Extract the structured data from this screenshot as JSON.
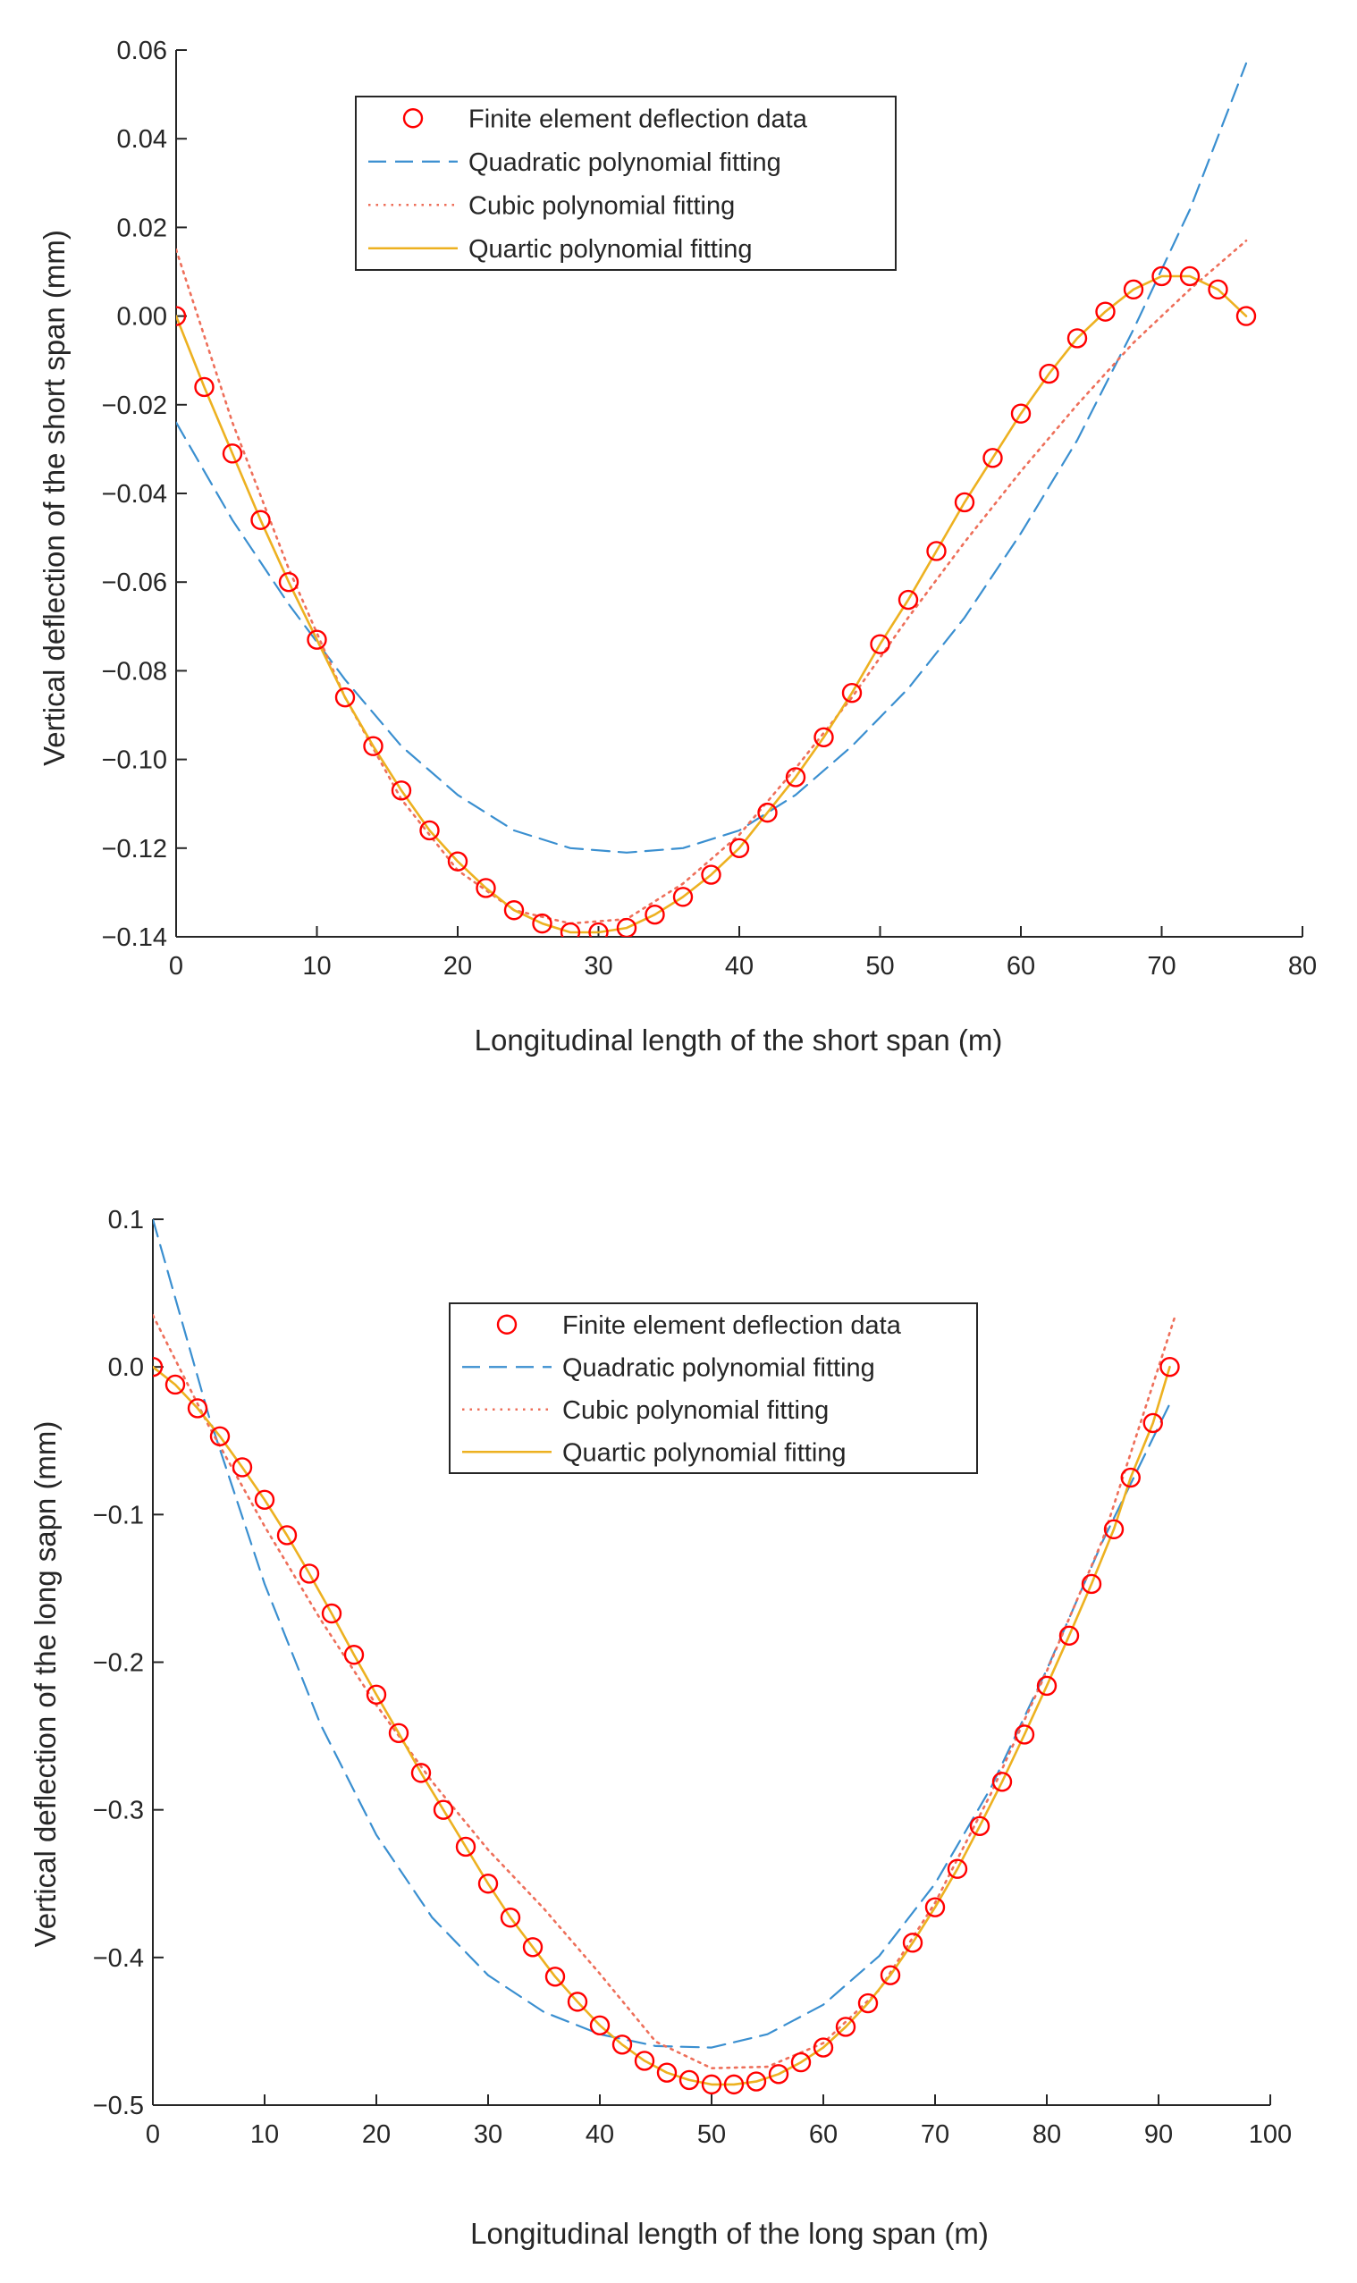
{
  "chart_data": [
    {
      "type": "line",
      "title": "",
      "xlabel": "Longitudinal length of the short span (m)",
      "ylabel": "Vertical deflection of the short span (mm)",
      "xlim": [
        0,
        80
      ],
      "ylim": [
        -0.14,
        0.06
      ],
      "xticks": [
        0,
        10,
        20,
        30,
        40,
        50,
        60,
        70,
        80
      ],
      "xtick_labels": [
        "0",
        "10",
        "20",
        "30",
        "40",
        "50",
        "60",
        "70",
        "80"
      ],
      "yticks": [
        -0.14,
        -0.12,
        -0.1,
        -0.08,
        -0.06,
        -0.04,
        -0.02,
        0.0,
        0.02,
        0.04,
        0.06
      ],
      "ytick_labels": [
        "−0.14",
        "−0.12",
        "−0.10",
        "−0.08",
        "−0.06",
        "−0.04",
        "−0.02",
        "0.00",
        "0.02",
        "0.04",
        "0.06"
      ],
      "grid": false,
      "legend_position": "top-center",
      "series": [
        {
          "name": "Finite element deflection data",
          "style": "markers-circle",
          "color": "#ff0000",
          "x": [
            0,
            2,
            4,
            6,
            8,
            10,
            12,
            14,
            16,
            18,
            20,
            22,
            24,
            26,
            28,
            30,
            32,
            34,
            36,
            38,
            40,
            42,
            44,
            46,
            48,
            50,
            52,
            54,
            56,
            58,
            60,
            62,
            64,
            66,
            68,
            70,
            72,
            74,
            76
          ],
          "values": [
            0.0,
            -0.016,
            -0.031,
            -0.046,
            -0.06,
            -0.073,
            -0.086,
            -0.097,
            -0.107,
            -0.116,
            -0.123,
            -0.129,
            -0.134,
            -0.137,
            -0.139,
            -0.139,
            -0.138,
            -0.135,
            -0.131,
            -0.126,
            -0.12,
            -0.112,
            -0.104,
            -0.095,
            -0.085,
            -0.074,
            -0.064,
            -0.053,
            -0.042,
            -0.032,
            -0.022,
            -0.013,
            -0.005,
            0.001,
            0.006,
            0.009,
            0.009,
            0.006,
            0.0
          ]
        },
        {
          "name": "Quadratic polynomial fitting",
          "style": "dashed",
          "color": "#3a8fd0",
          "x": [
            0,
            4,
            8,
            12,
            16,
            20,
            24,
            28,
            32,
            36,
            40,
            44,
            48,
            52,
            56,
            60,
            64,
            68,
            72,
            76
          ],
          "values": [
            -0.024,
            -0.046,
            -0.065,
            -0.082,
            -0.097,
            -0.108,
            -0.116,
            -0.12,
            -0.121,
            -0.12,
            -0.116,
            -0.108,
            -0.097,
            -0.084,
            -0.068,
            -0.049,
            -0.028,
            -0.003,
            0.024,
            0.057
          ]
        },
        {
          "name": "Cubic polynomial fitting",
          "style": "dotted",
          "color": "#ee6f5a",
          "x": [
            0,
            4,
            8,
            12,
            16,
            20,
            24,
            28,
            32,
            36,
            40,
            44,
            48,
            52,
            56,
            60,
            64,
            68,
            72,
            76
          ],
          "values": [
            0.015,
            -0.024,
            -0.057,
            -0.086,
            -0.109,
            -0.125,
            -0.134,
            -0.137,
            -0.136,
            -0.128,
            -0.117,
            -0.102,
            -0.086,
            -0.068,
            -0.051,
            -0.035,
            -0.02,
            -0.006,
            0.006,
            0.017
          ]
        },
        {
          "name": "Quartic polynomial fitting",
          "style": "solid",
          "color": "#edb120",
          "x": [
            0,
            2,
            4,
            6,
            8,
            10,
            12,
            14,
            16,
            18,
            20,
            22,
            24,
            26,
            28,
            30,
            32,
            34,
            36,
            38,
            40,
            42,
            44,
            46,
            48,
            50,
            52,
            54,
            56,
            58,
            60,
            62,
            64,
            66,
            68,
            70,
            72,
            74,
            76
          ],
          "values": [
            0.0,
            -0.016,
            -0.031,
            -0.046,
            -0.06,
            -0.073,
            -0.086,
            -0.097,
            -0.107,
            -0.116,
            -0.123,
            -0.129,
            -0.134,
            -0.137,
            -0.139,
            -0.139,
            -0.138,
            -0.135,
            -0.131,
            -0.126,
            -0.12,
            -0.112,
            -0.104,
            -0.095,
            -0.085,
            -0.074,
            -0.064,
            -0.053,
            -0.042,
            -0.032,
            -0.022,
            -0.013,
            -0.005,
            0.001,
            0.006,
            0.009,
            0.009,
            0.006,
            0.0
          ]
        }
      ]
    },
    {
      "type": "line",
      "title": "",
      "xlabel": "Longitudinal length of the long span (m)",
      "ylabel": "Vertical deflection of the long sapn (mm)",
      "xlim": [
        0,
        100
      ],
      "ylim": [
        -0.5,
        0.1
      ],
      "xticks": [
        0,
        10,
        20,
        30,
        40,
        50,
        60,
        70,
        80,
        90,
        100
      ],
      "xtick_labels": [
        "0",
        "10",
        "20",
        "30",
        "40",
        "50",
        "60",
        "70",
        "80",
        "90",
        "100"
      ],
      "yticks": [
        -0.5,
        -0.4,
        -0.3,
        -0.2,
        -0.1,
        0.0,
        0.1
      ],
      "ytick_labels": [
        "−0.5",
        "−0.4",
        "−0.3",
        "−0.2",
        "−0.1",
        "0.0",
        "0.1"
      ],
      "grid": false,
      "legend_position": "top-center",
      "series": [
        {
          "name": "Finite element deflection data",
          "style": "markers-circle",
          "color": "#ff0000",
          "x": [
            0,
            2,
            4,
            6,
            8,
            10,
            12,
            14,
            16,
            18,
            20,
            22,
            24,
            26,
            28,
            30,
            32,
            34,
            36,
            38,
            40,
            42,
            44,
            46,
            48,
            50,
            52,
            54,
            56,
            58,
            60,
            62,
            64,
            66,
            68,
            70,
            72,
            74,
            76,
            78,
            80,
            82,
            84,
            86,
            87.5,
            89.5,
            91
          ],
          "values": [
            0.0,
            -0.012,
            -0.028,
            -0.047,
            -0.068,
            -0.09,
            -0.114,
            -0.14,
            -0.167,
            -0.195,
            -0.222,
            -0.248,
            -0.275,
            -0.3,
            -0.325,
            -0.35,
            -0.373,
            -0.393,
            -0.413,
            -0.43,
            -0.446,
            -0.459,
            -0.47,
            -0.478,
            -0.483,
            -0.486,
            -0.486,
            -0.484,
            -0.479,
            -0.471,
            -0.461,
            -0.447,
            -0.431,
            -0.412,
            -0.39,
            -0.366,
            -0.34,
            -0.311,
            -0.281,
            -0.249,
            -0.216,
            -0.182,
            -0.147,
            -0.11,
            -0.075,
            -0.038,
            0.0
          ]
        },
        {
          "name": "Quadratic polynomial fitting",
          "style": "dashed",
          "color": "#3a8fd0",
          "x": [
            0,
            5,
            10,
            15,
            20,
            25,
            30,
            35,
            40,
            45,
            50,
            55,
            60,
            65,
            70,
            75,
            80,
            85,
            91
          ],
          "values": [
            0.1,
            -0.033,
            -0.147,
            -0.242,
            -0.317,
            -0.373,
            -0.412,
            -0.437,
            -0.452,
            -0.46,
            -0.461,
            -0.452,
            -0.432,
            -0.399,
            -0.35,
            -0.285,
            -0.205,
            -0.118,
            -0.025
          ]
        },
        {
          "name": "Cubic polynomial fitting",
          "style": "dotted",
          "color": "#ee6f5a",
          "x": [
            0,
            5,
            10,
            15,
            20,
            25,
            30,
            35,
            40,
            45,
            50,
            55,
            60,
            65,
            70,
            75,
            80,
            85,
            91.5
          ],
          "values": [
            0.035,
            -0.04,
            -0.108,
            -0.171,
            -0.229,
            -0.281,
            -0.327,
            -0.367,
            -0.411,
            -0.457,
            -0.475,
            -0.474,
            -0.458,
            -0.422,
            -0.363,
            -0.289,
            -0.206,
            -0.117,
            0.035
          ]
        },
        {
          "name": "Quartic polynomial fitting",
          "style": "solid",
          "color": "#edb120",
          "x": [
            0,
            2,
            4,
            6,
            8,
            10,
            12,
            14,
            16,
            18,
            20,
            22,
            24,
            26,
            28,
            30,
            32,
            34,
            36,
            38,
            40,
            42,
            44,
            46,
            48,
            50,
            52,
            54,
            56,
            58,
            60,
            62,
            64,
            66,
            68,
            70,
            72,
            74,
            76,
            78,
            80,
            82,
            84,
            86,
            87.5,
            89.5,
            91
          ],
          "values": [
            0.0,
            -0.012,
            -0.028,
            -0.047,
            -0.068,
            -0.09,
            -0.114,
            -0.14,
            -0.167,
            -0.195,
            -0.222,
            -0.248,
            -0.275,
            -0.3,
            -0.325,
            -0.35,
            -0.373,
            -0.393,
            -0.413,
            -0.43,
            -0.446,
            -0.459,
            -0.47,
            -0.478,
            -0.483,
            -0.486,
            -0.486,
            -0.484,
            -0.479,
            -0.471,
            -0.461,
            -0.447,
            -0.431,
            -0.412,
            -0.39,
            -0.366,
            -0.34,
            -0.311,
            -0.281,
            -0.249,
            -0.216,
            -0.182,
            -0.147,
            -0.11,
            -0.075,
            -0.038,
            0.0
          ]
        }
      ]
    }
  ]
}
